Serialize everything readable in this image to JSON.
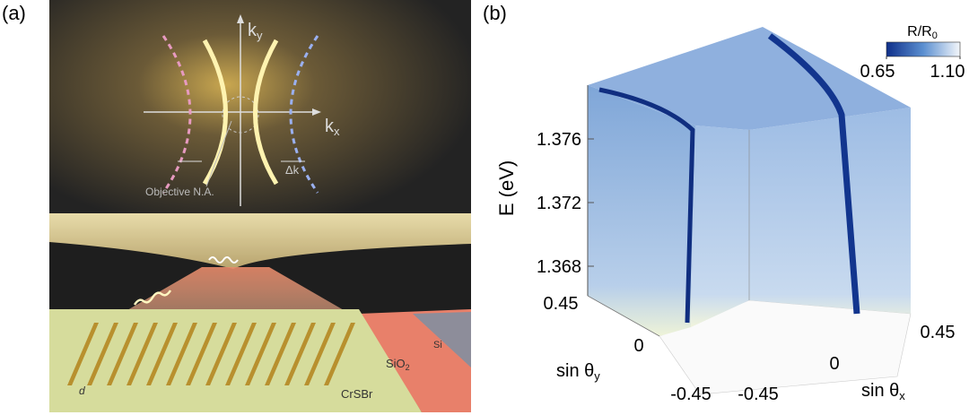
{
  "panel_a": {
    "label": "(a)",
    "ky": {
      "base": "k",
      "sub": "y"
    },
    "kx": {
      "base": "k",
      "sub": "x"
    },
    "delta_k": "Δk",
    "objective": "Objective N.A.",
    "si": "Si",
    "sio2": {
      "base": "SiO",
      "sub": "2"
    },
    "crsbr": "CrSBr",
    "d": "d"
  },
  "panel_b": {
    "label": "(b)",
    "colorbar": {
      "title": {
        "base": "R/R",
        "sub": "0"
      },
      "min": 0.65,
      "max": {
        "value": 1.1,
        "label": "1.10"
      }
    },
    "e_axis": {
      "title": "E (eV)",
      "ticks": [
        1.376,
        1.372,
        1.368
      ]
    },
    "y_axis": {
      "title": {
        "base": "sin θ",
        "sub": "y"
      },
      "ticks": [
        0.45,
        0,
        -0.45
      ]
    },
    "x_axis": {
      "title": {
        "base": "sin θ",
        "sub": "x"
      },
      "ticks": [
        -0.45,
        0,
        0.45
      ]
    }
  }
}
